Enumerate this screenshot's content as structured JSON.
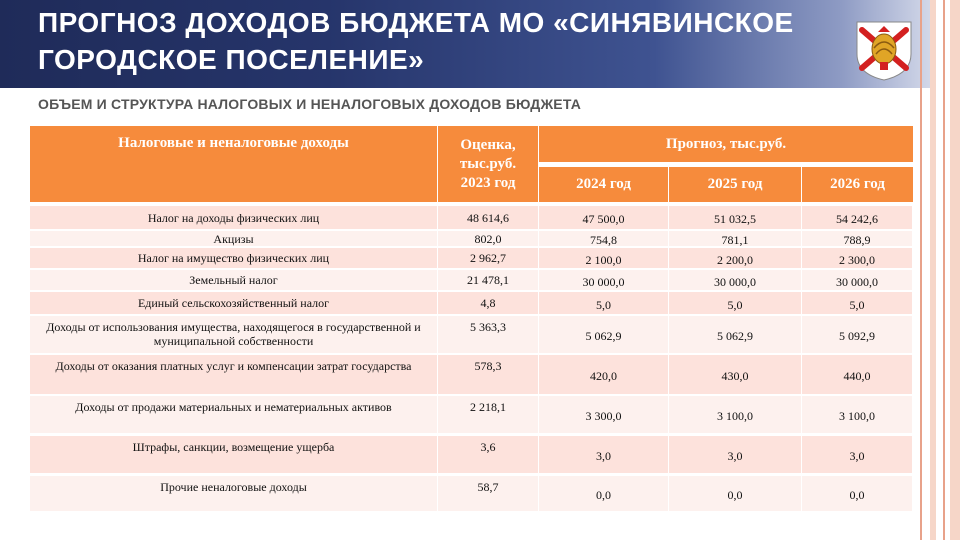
{
  "slide": {
    "title_line1": "ПРОГНОЗ ДОХОДОВ БЮДЖЕТА МО «СИНЯВИНСКОЕ",
    "title_line2": "ГОРОДСКОЕ ПОСЕЛЕНИЕ»",
    "subtitle": "ОБЪЕМ И СТРУКТУРА НАЛОГОВЫХ И НЕНАЛОГОВЫХ ДОХОДОВ БЮДЖЕТА"
  },
  "table": {
    "header_name": "Налоговые и неналоговые доходы",
    "header_estimate": "Оценка, тыс.руб. 2023 год",
    "header_forecast": "Прогноз, тыс.руб.",
    "years": [
      "2024 год",
      "2025 год",
      "2026 год"
    ],
    "rows": [
      {
        "name": "Налог на доходы физических лиц",
        "est": "48 614,6",
        "y1": "47 500,0",
        "y2": "51 032,5",
        "y3": "54 242,6"
      },
      {
        "name": "Акцизы",
        "est": "802,0",
        "y1": "754,8",
        "y2": "781,1",
        "y3": "788,9"
      },
      {
        "name": "Налог на имущество физических лиц",
        "est": "2 962,7",
        "y1": "2 100,0",
        "y2": "2 200,0",
        "y3": "2 300,0"
      },
      {
        "name": "Земельный налог",
        "est": "21 478,1",
        "y1": "30 000,0",
        "y2": "30 000,0",
        "y3": "30 000,0"
      },
      {
        "name": "Единый сельскохозяйственный налог",
        "est": "4,8",
        "y1": "5,0",
        "y2": "5,0",
        "y3": "5,0"
      },
      {
        "name": "Доходы от использования имущества, находящегося в государственной и муниципальной собственности",
        "est": "5 363,3",
        "y1": "5 062,9",
        "y2": "5 062,9",
        "y3": "5 092,9"
      },
      {
        "name": "Доходы от оказания платных услуг и компенсации затрат государства",
        "est": "578,3",
        "y1": "420,0",
        "y2": "430,0",
        "y3": "440,0"
      },
      {
        "name": "Доходы от продажи материальных и нематериальных активов",
        "est": "2 218,1",
        "y1": "3 300,0",
        "y2": "3 100,0",
        "y3": "3 100,0"
      },
      {
        "name": "Штрафы, санкции, возмещение ущерба",
        "est": "3,6",
        "y1": "3,0",
        "y2": "3,0",
        "y3": "3,0"
      },
      {
        "name": "Прочие неналоговые доходы",
        "est": "58,7",
        "y1": "0,0",
        "y2": "0,0",
        "y3": "0,0"
      }
    ]
  },
  "colors": {
    "banner": "#1f2b59",
    "header": "#f68b3c",
    "row_odd": "#fde2dc",
    "row_even": "#fdf1ee"
  },
  "icons": {
    "coat_of_arms": "coat-of-arms-icon"
  }
}
